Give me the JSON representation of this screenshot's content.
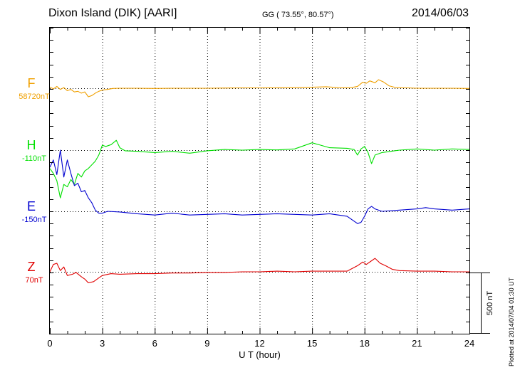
{
  "header": {
    "station": "Dixon Island (DIK)  [AARI]",
    "coords": "GG ( 73.55°,  80.57°)",
    "date": "2014/06/03"
  },
  "plotted_note": "Plotted at 2014/07/04 01:30 UT",
  "chart_data": {
    "type": "line",
    "xlabel": "U T (hour)",
    "xlim": [
      0,
      24
    ],
    "x_ticks": [
      "0",
      "3",
      "6",
      "9",
      "12",
      "15",
      "18",
      "21",
      "24"
    ],
    "scale_bar_label": "500 nT",
    "grid": "dotted vertical every 3 h, dotted baseline per trace",
    "series": [
      {
        "name": "F",
        "baseline_label": "58720nT",
        "color": "#f0a000",
        "points": [
          [
            0,
            10
          ],
          [
            0.2,
            -5
          ],
          [
            0.4,
            15
          ],
          [
            0.6,
            -10
          ],
          [
            0.8,
            5
          ],
          [
            1.0,
            -20
          ],
          [
            1.2,
            -10
          ],
          [
            1.4,
            -30
          ],
          [
            1.6,
            -25
          ],
          [
            1.8,
            -40
          ],
          [
            2.0,
            -30
          ],
          [
            2.2,
            -70
          ],
          [
            2.4,
            -60
          ],
          [
            2.6,
            -40
          ],
          [
            2.8,
            -25
          ],
          [
            3.0,
            -15
          ],
          [
            3.3,
            -10
          ],
          [
            3.6,
            -2
          ],
          [
            4.0,
            0
          ],
          [
            5,
            0
          ],
          [
            6,
            -2
          ],
          [
            7,
            0
          ],
          [
            8,
            0
          ],
          [
            9,
            0
          ],
          [
            10,
            2
          ],
          [
            11,
            3
          ],
          [
            12,
            3
          ],
          [
            13,
            4
          ],
          [
            14,
            5
          ],
          [
            15,
            8
          ],
          [
            15.8,
            12
          ],
          [
            16.5,
            5
          ],
          [
            17.2,
            4
          ],
          [
            17.6,
            15
          ],
          [
            17.9,
            50
          ],
          [
            18.1,
            40
          ],
          [
            18.3,
            60
          ],
          [
            18.6,
            45
          ],
          [
            18.8,
            70
          ],
          [
            19.1,
            50
          ],
          [
            19.4,
            20
          ],
          [
            19.8,
            5
          ],
          [
            20.5,
            3
          ],
          [
            21,
            0
          ],
          [
            22,
            0
          ],
          [
            23,
            0
          ],
          [
            24,
            -2
          ]
        ]
      },
      {
        "name": "H",
        "baseline_label": "-110nT",
        "color": "#00e000",
        "points": [
          [
            0,
            -150
          ],
          [
            0.2,
            -190
          ],
          [
            0.4,
            -250
          ],
          [
            0.6,
            -390
          ],
          [
            0.8,
            -280
          ],
          [
            1.0,
            -300
          ],
          [
            1.2,
            -240
          ],
          [
            1.4,
            -280
          ],
          [
            1.6,
            -190
          ],
          [
            1.8,
            -220
          ],
          [
            2.0,
            -170
          ],
          [
            2.2,
            -150
          ],
          [
            2.4,
            -120
          ],
          [
            2.6,
            -90
          ],
          [
            2.8,
            -40
          ],
          [
            3.0,
            40
          ],
          [
            3.2,
            30
          ],
          [
            3.5,
            45
          ],
          [
            3.8,
            80
          ],
          [
            4.0,
            20
          ],
          [
            4.3,
            -5
          ],
          [
            5,
            -10
          ],
          [
            6,
            -20
          ],
          [
            7,
            -10
          ],
          [
            8,
            -25
          ],
          [
            9,
            -5
          ],
          [
            10,
            5
          ],
          [
            11,
            0
          ],
          [
            12,
            5
          ],
          [
            13,
            2
          ],
          [
            14,
            10
          ],
          [
            15,
            60
          ],
          [
            15.5,
            40
          ],
          [
            16,
            20
          ],
          [
            17,
            15
          ],
          [
            17.4,
            5
          ],
          [
            17.6,
            -40
          ],
          [
            17.8,
            10
          ],
          [
            18.0,
            30
          ],
          [
            18.2,
            -20
          ],
          [
            18.4,
            -110
          ],
          [
            18.6,
            -40
          ],
          [
            19.0,
            -20
          ],
          [
            19.5,
            -10
          ],
          [
            20,
            0
          ],
          [
            21,
            10
          ],
          [
            22,
            0
          ],
          [
            23,
            10
          ],
          [
            24,
            5
          ]
        ]
      },
      {
        "name": "E",
        "baseline_label": "-150nT",
        "color": "#0000d0",
        "points": [
          [
            0,
            360
          ],
          [
            0.2,
            420
          ],
          [
            0.4,
            300
          ],
          [
            0.6,
            500
          ],
          [
            0.8,
            280
          ],
          [
            1.0,
            420
          ],
          [
            1.2,
            310
          ],
          [
            1.4,
            210
          ],
          [
            1.6,
            230
          ],
          [
            1.8,
            160
          ],
          [
            2.0,
            170
          ],
          [
            2.2,
            110
          ],
          [
            2.4,
            70
          ],
          [
            2.6,
            10
          ],
          [
            2.8,
            -15
          ],
          [
            3.0,
            -15
          ],
          [
            3.3,
            0
          ],
          [
            4,
            -5
          ],
          [
            5,
            -20
          ],
          [
            6,
            -30
          ],
          [
            7,
            -15
          ],
          [
            8,
            -30
          ],
          [
            9,
            -25
          ],
          [
            10,
            -20
          ],
          [
            11,
            -30
          ],
          [
            12,
            -25
          ],
          [
            13,
            -20
          ],
          [
            14,
            -25
          ],
          [
            15,
            -30
          ],
          [
            16,
            -20
          ],
          [
            17,
            -40
          ],
          [
            17.6,
            -100
          ],
          [
            17.8,
            -90
          ],
          [
            18.0,
            -40
          ],
          [
            18.2,
            20
          ],
          [
            18.4,
            40
          ],
          [
            18.6,
            20
          ],
          [
            19,
            0
          ],
          [
            20,
            10
          ],
          [
            21,
            20
          ],
          [
            21.5,
            30
          ],
          [
            22,
            20
          ],
          [
            23,
            10
          ],
          [
            24,
            20
          ]
        ]
      },
      {
        "name": "Z",
        "baseline_label": "70nT",
        "color": "#e00000",
        "points": [
          [
            0,
            0
          ],
          [
            0.2,
            60
          ],
          [
            0.4,
            70
          ],
          [
            0.6,
            10
          ],
          [
            0.8,
            40
          ],
          [
            1.0,
            -30
          ],
          [
            1.3,
            -20
          ],
          [
            1.5,
            -5
          ],
          [
            1.8,
            -40
          ],
          [
            2.0,
            -60
          ],
          [
            2.2,
            -90
          ],
          [
            2.5,
            -80
          ],
          [
            2.8,
            -50
          ],
          [
            3.0,
            -30
          ],
          [
            3.5,
            -15
          ],
          [
            4,
            -20
          ],
          [
            5,
            -15
          ],
          [
            6,
            -15
          ],
          [
            7,
            -10
          ],
          [
            8,
            -10
          ],
          [
            9,
            -5
          ],
          [
            10,
            -5
          ],
          [
            11,
            0
          ],
          [
            12,
            0
          ],
          [
            13,
            5
          ],
          [
            14,
            0
          ],
          [
            15,
            5
          ],
          [
            16,
            5
          ],
          [
            17,
            5
          ],
          [
            17.6,
            50
          ],
          [
            17.9,
            80
          ],
          [
            18.1,
            60
          ],
          [
            18.4,
            90
          ],
          [
            18.6,
            110
          ],
          [
            18.9,
            70
          ],
          [
            19.2,
            50
          ],
          [
            19.6,
            20
          ],
          [
            20,
            10
          ],
          [
            21,
            5
          ],
          [
            22,
            5
          ],
          [
            23,
            0
          ],
          [
            24,
            0
          ]
        ]
      }
    ]
  }
}
